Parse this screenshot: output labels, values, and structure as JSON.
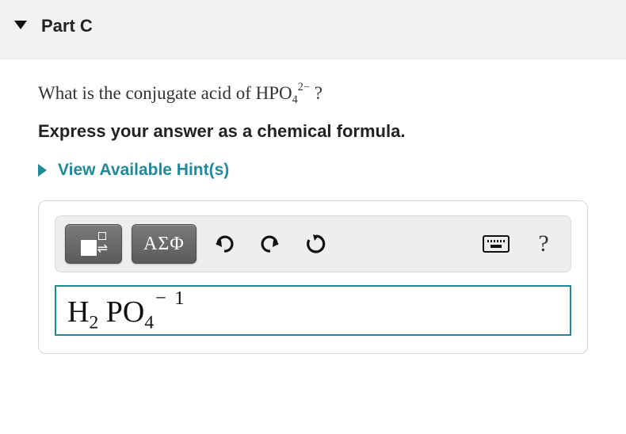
{
  "header": {
    "title": "Part C",
    "collapsed": false
  },
  "question": {
    "prefix": "What is the conjugate acid of ",
    "species_html": "HPO<span class='qsub'>4</span><span class='qsup'>2−</span>",
    "suffix": " ?"
  },
  "instruction": "Express your answer as a chemical formula.",
  "hints": {
    "label": "View Available Hint(s)",
    "expanded": false
  },
  "toolbar": {
    "template_button": "template-superscript",
    "greek_label": "ΑΣΦ",
    "icons": {
      "undo": "undo-icon",
      "redo": "redo-icon",
      "reset": "reset-icon",
      "keyboard": "keyboard-icon",
      "help": "?"
    }
  },
  "answer": {
    "value_html": "H<sub>2</sub>&nbsp;PO<sub>4</sub><span class='charge-sup'>−&nbsp;1</span>"
  },
  "colors": {
    "accent": "#1f8a99",
    "header_bg": "#f2f2f2",
    "panel_border": "#d6d6d6",
    "toolbar_bg": "#eeeeee",
    "dark_btn_top": "#7a7a7a",
    "dark_btn_bottom": "#5b5b5b",
    "text": "#222222"
  }
}
